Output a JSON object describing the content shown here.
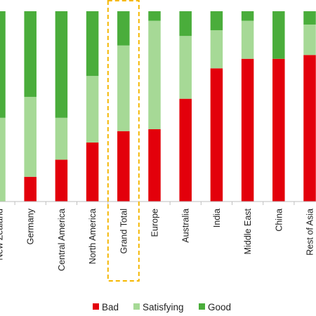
{
  "chart_data": {
    "type": "bar",
    "stacked": true,
    "percent_stacked": true,
    "categories": [
      "New Zealand",
      "Germany",
      "Central America",
      "North America",
      "Grand Total",
      "Europe",
      "Australia",
      "India",
      "Middle East",
      "China",
      "Rest of Asia"
    ],
    "series": [
      {
        "name": "Bad",
        "color": "#e3000b",
        "values": [
          0,
          13,
          22,
          31,
          37,
          38,
          54,
          70,
          75,
          75,
          77
        ]
      },
      {
        "name": "Satisfying",
        "color": "#a6d996",
        "values": [
          44,
          42,
          22,
          35,
          45,
          57,
          33,
          20,
          20,
          0,
          16
        ]
      },
      {
        "name": "Good",
        "color": "#4aad3b",
        "values": [
          56,
          45,
          56,
          34,
          18,
          5,
          13,
          10,
          5,
          25,
          7
        ]
      }
    ],
    "ylim": [
      0,
      100
    ],
    "grid": false,
    "legend_position": "bottom",
    "highlighted_category": "Grand Total",
    "highlight_color": "#f5b700"
  }
}
